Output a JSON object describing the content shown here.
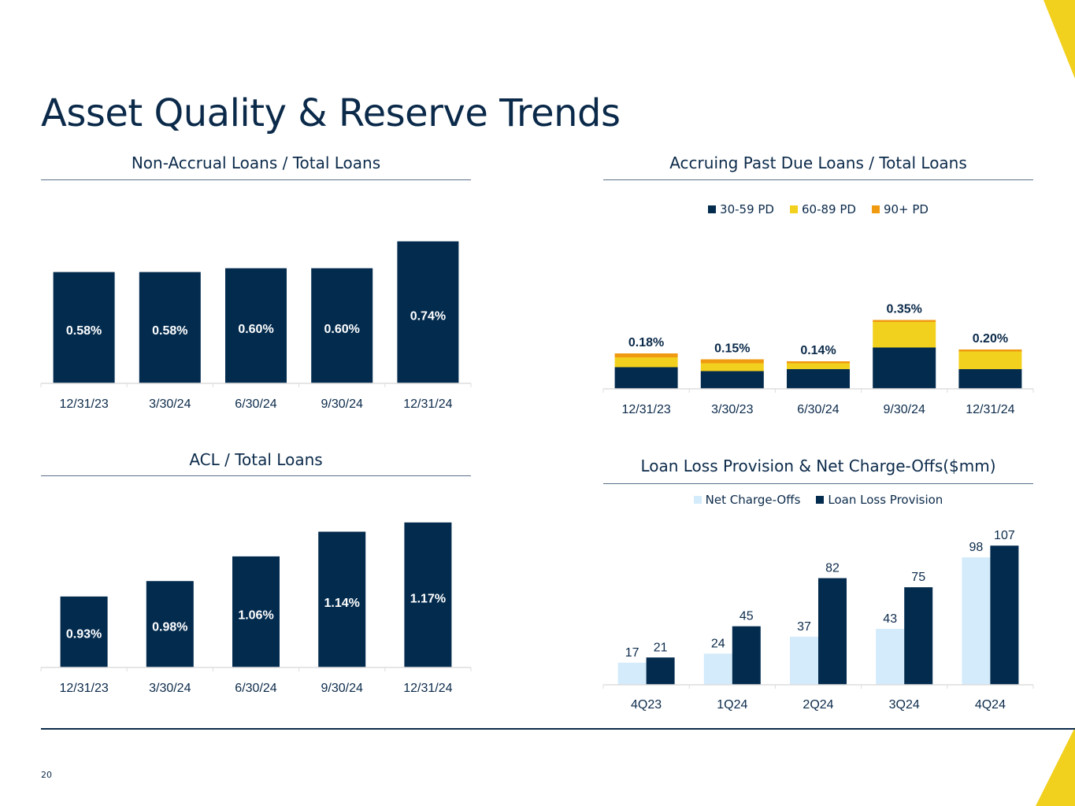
{
  "title": "Asset Quality & Reserve Trends",
  "page_number": "20",
  "colors": {
    "navy": "#032b4e",
    "yellow": "#f2d01e",
    "orange": "#ef9a10",
    "light_blue": "#d4ebfb",
    "axis": "#dddddd"
  },
  "chart_data": [
    {
      "id": "non-accrual",
      "type": "bar",
      "title": "Non-Accrual Loans / Total Loans",
      "categories": [
        "12/31/23",
        "3/30/24",
        "6/30/24",
        "9/30/24",
        "12/31/24"
      ],
      "values": [
        0.58,
        0.58,
        0.6,
        0.6,
        0.74
      ],
      "labels": [
        "0.58%",
        "0.58%",
        "0.60%",
        "0.60%",
        "0.74%"
      ],
      "ylim": [
        0,
        0.8
      ],
      "label_position": "inside"
    },
    {
      "id": "past-due",
      "type": "bar",
      "stacked": true,
      "title": "Accruing Past Due Loans / Total Loans",
      "categories": [
        "12/31/23",
        "3/30/23",
        "6/30/24",
        "9/30/24",
        "12/31/24"
      ],
      "series": [
        {
          "name": "30-59 PD",
          "color": "#032b4e",
          "values": [
            0.11,
            0.09,
            0.1,
            0.21,
            0.1
          ]
        },
        {
          "name": "60-89 PD",
          "color": "#f2d01e",
          "values": [
            0.05,
            0.04,
            0.03,
            0.13,
            0.09
          ]
        },
        {
          "name": "90+ PD",
          "color": "#ef9a10",
          "values": [
            0.02,
            0.02,
            0.01,
            0.01,
            0.01
          ]
        }
      ],
      "totals": [
        "0.18%",
        "0.15%",
        "0.14%",
        "0.35%",
        "0.20%"
      ],
      "ylim": [
        0,
        0.8
      ],
      "legend": "top-center"
    },
    {
      "id": "acl",
      "type": "bar",
      "title": "ACL / Total Loans",
      "categories": [
        "12/31/23",
        "3/30/24",
        "6/30/24",
        "9/30/24",
        "12/31/24"
      ],
      "values": [
        0.93,
        0.98,
        1.06,
        1.14,
        1.17
      ],
      "labels": [
        "0.93%",
        "0.98%",
        "1.06%",
        "1.14%",
        "1.17%"
      ],
      "ylim": [
        0.7,
        1.2
      ],
      "label_position": "inside"
    },
    {
      "id": "provision",
      "type": "bar",
      "title": "Loan Loss Provision & Net Charge-Offs($mm)",
      "categories": [
        "4Q23",
        "1Q24",
        "2Q24",
        "3Q24",
        "4Q24"
      ],
      "series": [
        {
          "name": "Net Charge-Offs",
          "color": "#d4ebfb",
          "values": [
            17,
            24,
            37,
            43,
            98
          ]
        },
        {
          "name": "Loan Loss Provision",
          "color": "#032b4e",
          "values": [
            21,
            45,
            82,
            75,
            107
          ]
        }
      ],
      "ylim": [
        0,
        115
      ],
      "legend": "top-center"
    }
  ]
}
